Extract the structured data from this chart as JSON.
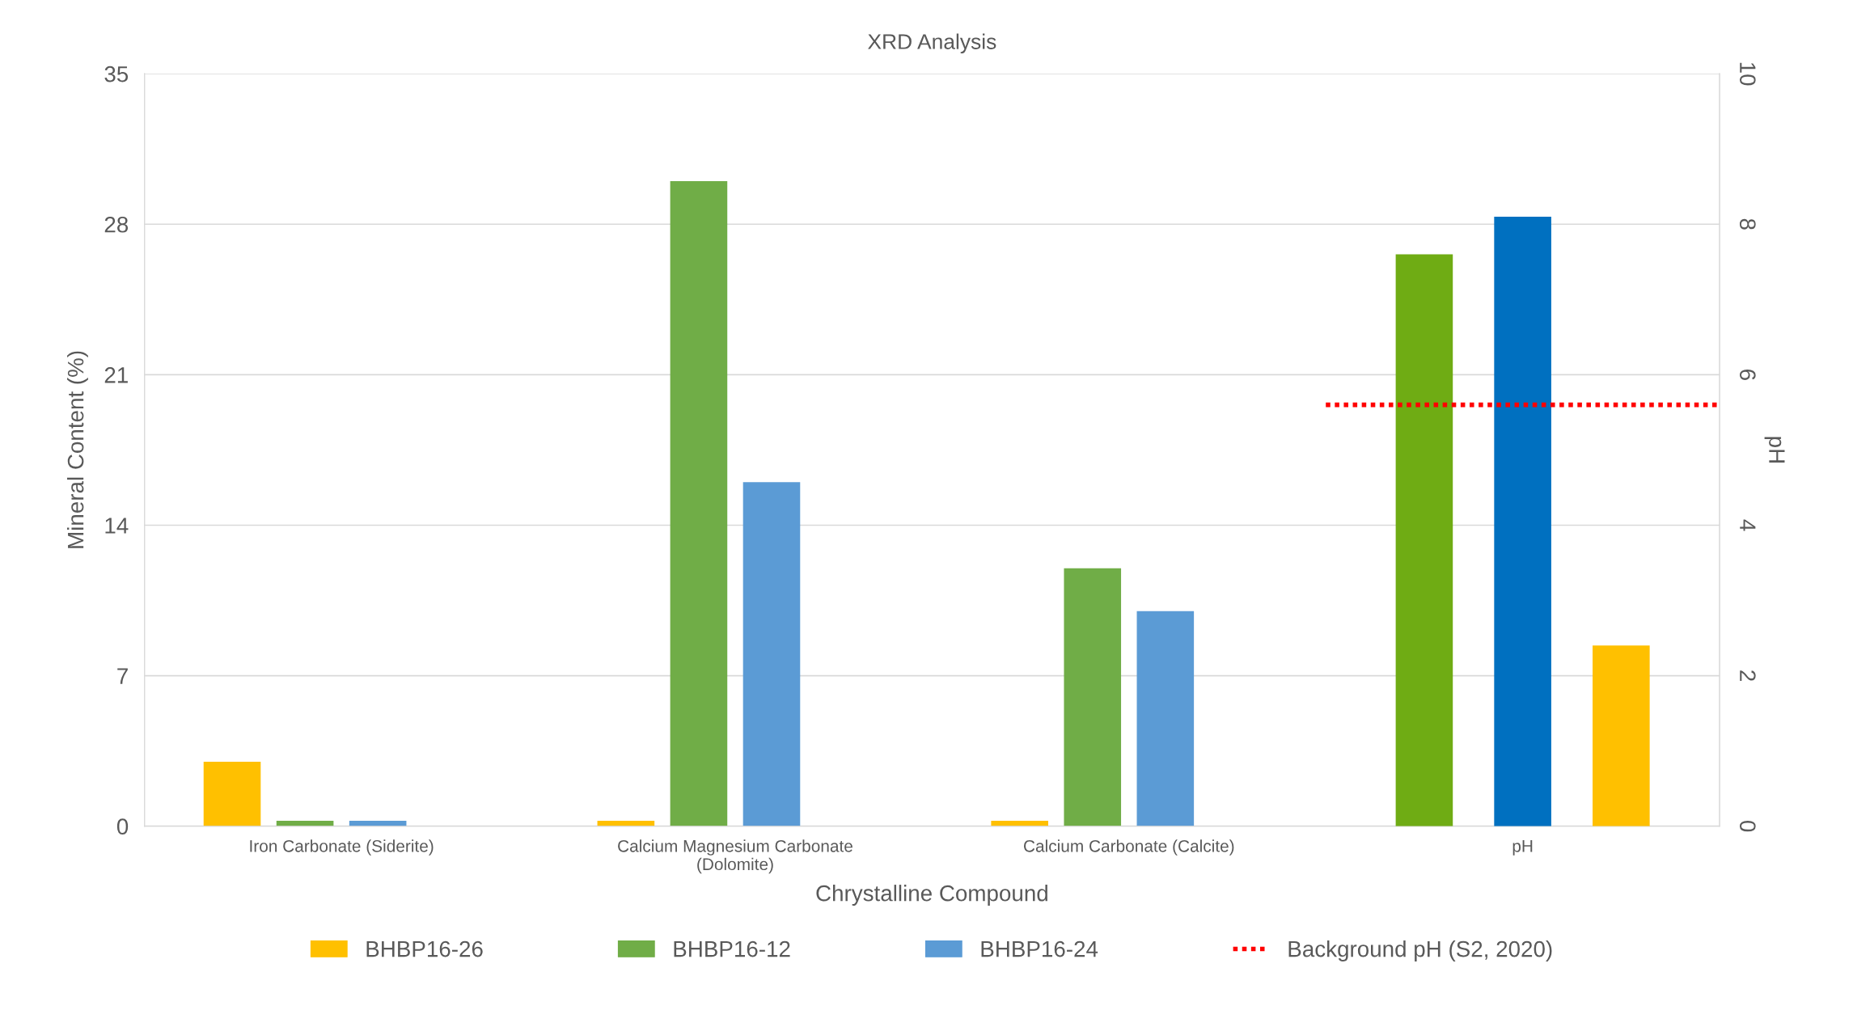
{
  "chart_data": {
    "type": "bar",
    "title": "XRD Analysis",
    "xlabel": "Chrystalline Compound",
    "ylabel": "Mineral Content (%)",
    "y2label": "pH",
    "categories": [
      "Iron Carbonate (Siderite)",
      "Calcium Magnesium Carbonate\n(Dolomite)",
      "Calcium Carbonate (Calcite)",
      "pH"
    ],
    "series": [
      {
        "name": "BHBP16-26",
        "color": "#ffc000",
        "values": [
          3,
          0.25,
          0.25,
          null
        ]
      },
      {
        "name": "BHBP16-12",
        "color": "#70ad47",
        "values": [
          0.25,
          30,
          12,
          null
        ]
      },
      {
        "name": "BHBP16-24",
        "color": "#5b9bd5",
        "values": [
          0.25,
          16,
          10,
          null
        ]
      },
      {
        "color": "#6fac14",
        "axis": "y2",
        "values": [
          null,
          null,
          null,
          7.6
        ]
      },
      {
        "color": "#0070c0",
        "axis": "y2",
        "values": [
          null,
          null,
          null,
          8.1
        ]
      },
      {
        "color": "#ffc000",
        "axis": "y2",
        "values": [
          null,
          null,
          null,
          2.4
        ]
      }
    ],
    "ylim": [
      0,
      35
    ],
    "yticks": [
      0,
      7,
      14,
      21,
      28,
      35
    ],
    "y2lim": [
      0,
      10
    ],
    "y2ticks": [
      0,
      2,
      4,
      6,
      8,
      10
    ],
    "ref_lines": [
      {
        "axis": "y2",
        "value": 5.6,
        "label": "Background pH (S2, 2020)",
        "color": "#ff0000",
        "line_style": "dotted"
      }
    ],
    "grid": "y",
    "legend": "bottom"
  }
}
